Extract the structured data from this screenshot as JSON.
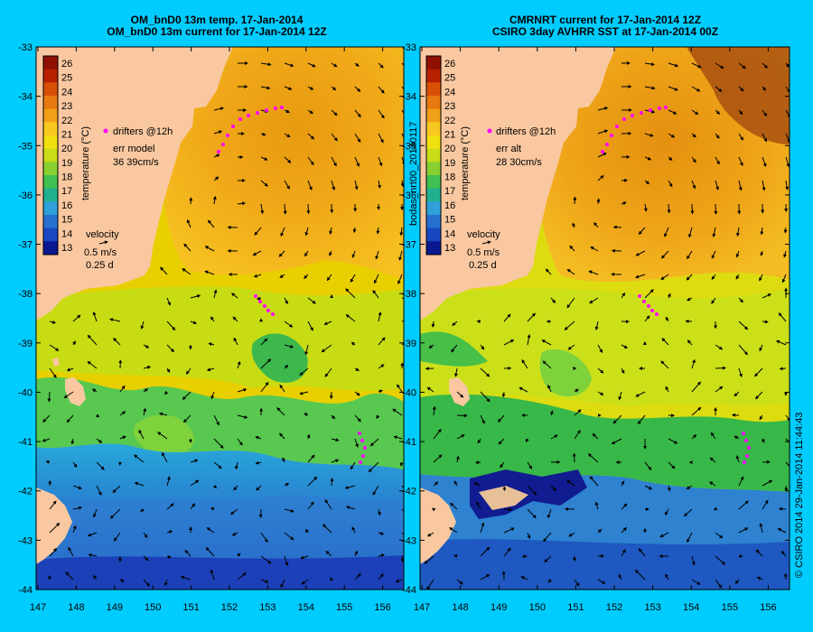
{
  "left_panel": {
    "title_line1": "OM_bnD0 13m temp. 17-Jan-2014",
    "title_line2": "OM_bnD0 13m current for 17-Jan-2014 12Z",
    "err_label": "err model",
    "err_value": "36 39cm/s"
  },
  "right_panel": {
    "title_line1": "CMRNRT current for 17-Jan-2014 12Z",
    "title_line2": "CSIRO 3day AVHRR SST at 17-Jan-2014 00Z",
    "err_label": "err alt",
    "err_value": "28 30cm/s"
  },
  "legend": {
    "drifters_label": "drifters @12h",
    "temperature_label": "temperature (°C)",
    "colorbar_ticks": [
      "26",
      "25",
      "24",
      "23",
      "22",
      "21",
      "20",
      "19",
      "18",
      "17",
      "16",
      "15",
      "14",
      "13"
    ],
    "velocity_label": "velocity",
    "velocity_scale": "0.5 m/s",
    "velocity_time": "0.25 d"
  },
  "axes": {
    "lat_ticks": [
      "-33",
      "-34",
      "-35",
      "-36",
      "-37",
      "-38",
      "-39",
      "-40",
      "-41",
      "-42",
      "-43",
      "-44"
    ],
    "lon_ticks": [
      "147",
      "148",
      "149",
      "150",
      "151",
      "152",
      "153",
      "154",
      "155",
      "156"
    ]
  },
  "side_labels": {
    "bodas": "bodas_nrt00_20140117",
    "credit": "© CSIRO 2014   29-Jan-2014 11:44:43"
  },
  "colors": {
    "background": "#00ccff",
    "land": "#f9c8a0",
    "drifter": "#ff00ff"
  }
}
